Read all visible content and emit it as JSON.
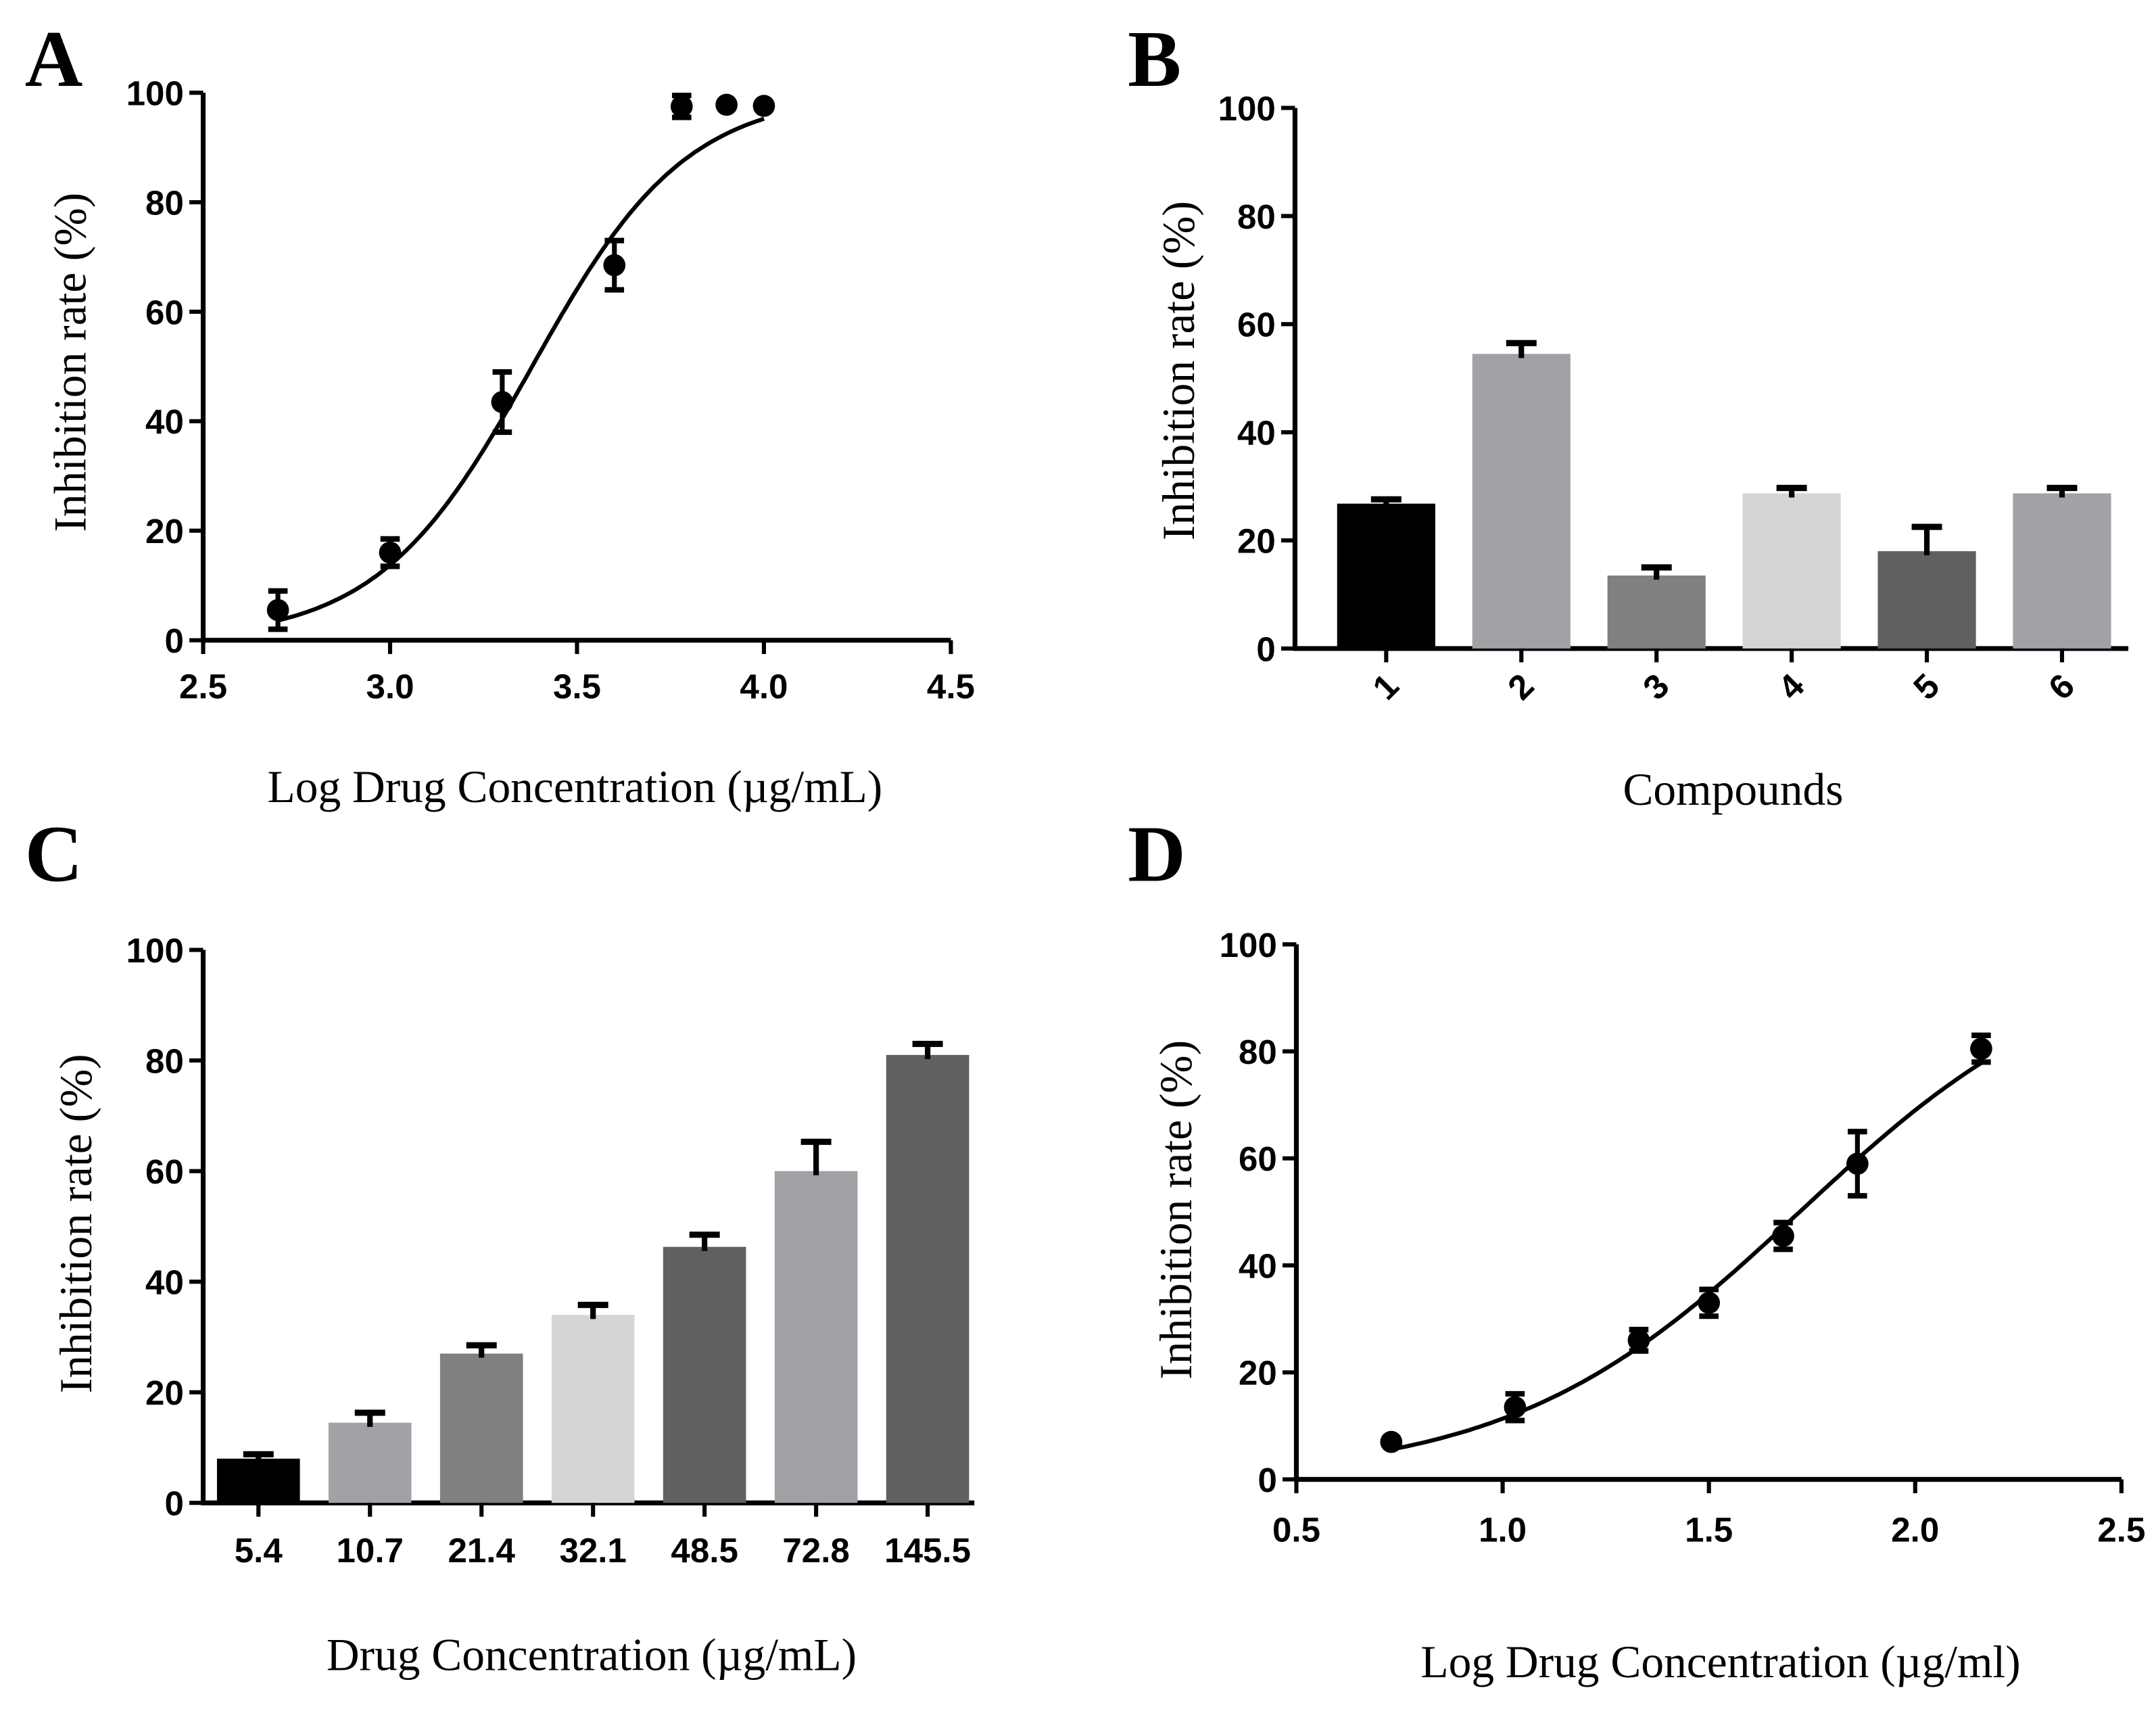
{
  "chart_data": [
    {
      "panel": "A",
      "type": "scatter",
      "xlabel": "Log Drug Concentration (µg/mL)",
      "ylabel": "Inhibition rate (%)",
      "xlim": [
        2.5,
        4.5
      ],
      "ylim": [
        0,
        100
      ],
      "xticks": [
        "2.5",
        "3.0",
        "3.5",
        "4.0",
        "4.5"
      ],
      "yticks": [
        "0",
        "20",
        "40",
        "60",
        "80",
        "100"
      ],
      "points": [
        {
          "x": 2.7,
          "y": 5.5,
          "err": 3.5
        },
        {
          "x": 3.0,
          "y": 16,
          "err": 2.5
        },
        {
          "x": 3.3,
          "y": 43.5,
          "err": 5.5
        },
        {
          "x": 3.6,
          "y": 68.5,
          "err": 4.5
        },
        {
          "x": 3.78,
          "y": 97.5,
          "err": 2
        },
        {
          "x": 3.9,
          "y": 97.8,
          "err": 0
        },
        {
          "x": 4.0,
          "y": 97.6,
          "err": 0
        }
      ],
      "fit": {
        "model": "sigmoid",
        "bottom": 0,
        "top": 100,
        "logEC50": 3.38,
        "hill": 2.1,
        "xrange": [
          2.7,
          4.0
        ]
      }
    },
    {
      "panel": "B",
      "type": "bar",
      "xlabel": "Compounds",
      "ylabel": "Inhibition rate (%)",
      "ylim": [
        0,
        100
      ],
      "yticks": [
        "0",
        "20",
        "40",
        "60",
        "80",
        "100"
      ],
      "categories": [
        "1",
        "2",
        "3",
        "4",
        "5",
        "6"
      ],
      "values": [
        26.8,
        54.5,
        13.5,
        28.7,
        18,
        28.7
      ],
      "errors": [
        0.8,
        2,
        1.5,
        1,
        4.5,
        1
      ],
      "colors": [
        "#000000",
        "#a2a1a6",
        "#808080",
        "#d5d5d5",
        "#606060",
        "#a2a1a6"
      ]
    },
    {
      "panel": "C",
      "type": "bar",
      "xlabel": "Drug Concentration (µg/mL)",
      "ylabel": "Inhibition rate (%)",
      "ylim": [
        0,
        100
      ],
      "yticks": [
        "0",
        "20",
        "40",
        "60",
        "80",
        "100"
      ],
      "categories": [
        "5.4",
        "10.7",
        "21.4",
        "32.1",
        "48.5",
        "72.8",
        "145.5"
      ],
      "values": [
        8,
        14.5,
        27,
        34,
        46.3,
        60,
        81
      ],
      "errors": [
        0.8,
        1.8,
        1.5,
        1.8,
        2.2,
        5.3,
        2
      ],
      "colors": [
        "#000000",
        "#a2a1a6",
        "#808080",
        "#d5d5d5",
        "#606060",
        "#a2a1a6",
        "#606060"
      ]
    },
    {
      "panel": "D",
      "type": "scatter",
      "xlabel": "Log Drug Concentration (µg/ml)",
      "ylabel": "Inhibition rate (%)",
      "xlim": [
        0.5,
        2.5
      ],
      "ylim": [
        0,
        100
      ],
      "xticks": [
        "0.5",
        "1.0",
        "1.5",
        "2.0",
        "2.5"
      ],
      "yticks": [
        "0",
        "20",
        "40",
        "60",
        "80",
        "100"
      ],
      "points": [
        {
          "x": 0.73,
          "y": 7,
          "err": 0
        },
        {
          "x": 1.03,
          "y": 13.5,
          "err": 2.5
        },
        {
          "x": 1.33,
          "y": 26,
          "err": 2
        },
        {
          "x": 1.5,
          "y": 33,
          "err": 2.5
        },
        {
          "x": 1.68,
          "y": 45.5,
          "err": 2.5
        },
        {
          "x": 1.86,
          "y": 59,
          "err": 6
        },
        {
          "x": 2.16,
          "y": 80.5,
          "err": 2.5
        }
      ],
      "fit": {
        "model": "sigmoid",
        "bottom": 0,
        "top": 100,
        "logEC50": 1.72,
        "hill": 1.24,
        "xrange": [
          0.73,
          2.16
        ]
      }
    }
  ]
}
